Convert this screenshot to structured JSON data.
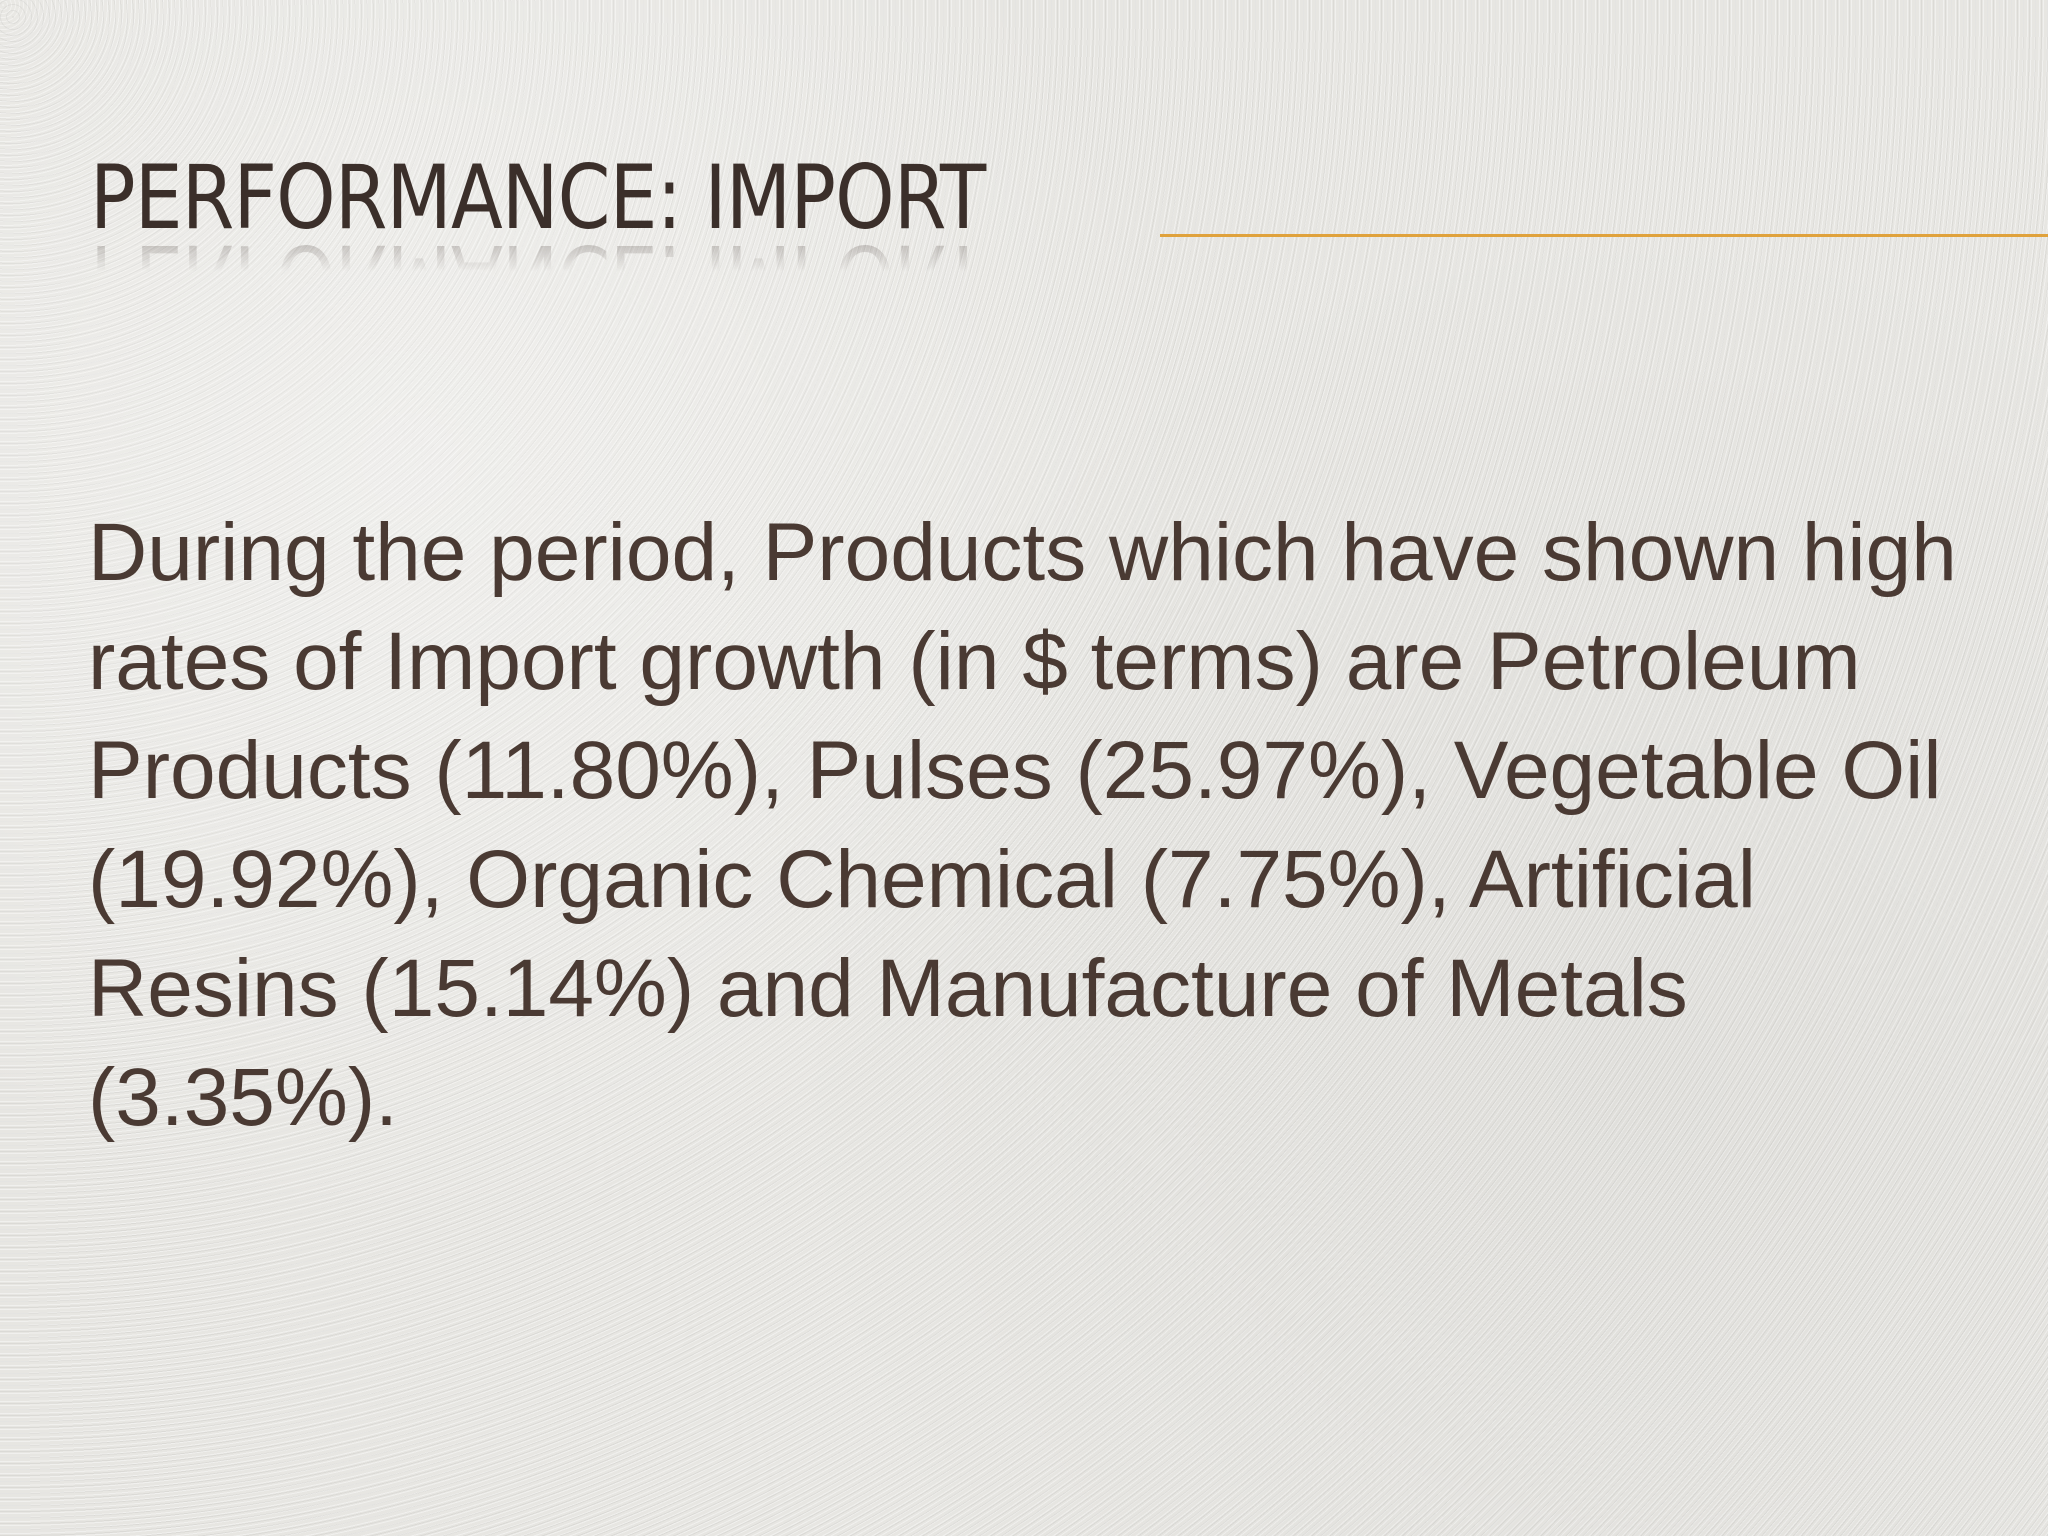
{
  "slide": {
    "title": "PERFORMANCE: IMPORT",
    "body": "During the period, Products which have shown high rates of Import growth (in $ terms) are Petroleum Products (11.80%), Pulses (25.97%), Vegetable Oil (19.92%), Organic Chemical (7.75%), Artificial Resins (15.14%) and Manufacture of Metals (3.35%)."
  },
  "colors": {
    "background": "#e7e6e2",
    "title": "#3b2f2a",
    "body_text": "#4a3a33",
    "accent_rule": "#e0a23c"
  }
}
